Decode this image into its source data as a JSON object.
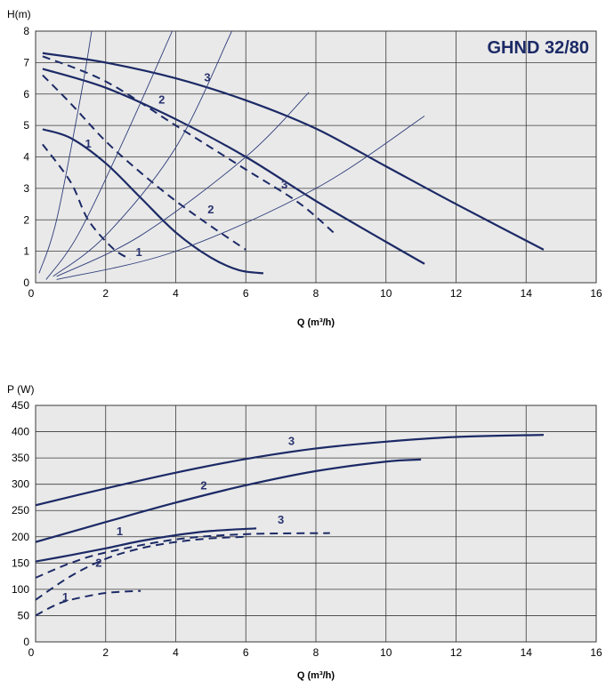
{
  "colors": {
    "plot_bg": "#e9e9e9",
    "grid": "#3a3a3a",
    "curve_thick": "#1c2a66",
    "curve_thin": "#2e3d7a",
    "label": "#2a3470",
    "title": "#1c2a66",
    "axis_text": "#000000"
  },
  "chart_data": [
    {
      "type": "line",
      "title": "GHND 32/80",
      "ylabel": "H(m)",
      "xlabel": "Q (m³/h)",
      "xlim": [
        0,
        16
      ],
      "ylim": [
        0,
        8
      ],
      "xticks": [
        "0",
        "2",
        "4",
        "6",
        "8",
        "10",
        "12",
        "14",
        "16"
      ],
      "yticks": [
        "0",
        "1",
        "2",
        "3",
        "4",
        "5",
        "6",
        "7",
        "8"
      ],
      "grid": true,
      "series": [
        {
          "label": "1",
          "style": "solid",
          "x": [
            0.2,
            1.0,
            2.0,
            3.0,
            4.0,
            5.0,
            5.8,
            6.5
          ],
          "y": [
            4.88,
            4.6,
            3.8,
            2.7,
            1.6,
            0.8,
            0.4,
            0.3
          ]
        },
        {
          "label": "2",
          "style": "solid",
          "x": [
            0.2,
            2.0,
            4.0,
            6.0,
            8.0,
            10.0,
            11.1
          ],
          "y": [
            6.8,
            6.2,
            5.2,
            4.0,
            2.6,
            1.3,
            0.6
          ]
        },
        {
          "label": "3",
          "style": "solid",
          "x": [
            0.2,
            2.0,
            4.0,
            6.0,
            8.0,
            10.0,
            12.0,
            14.5
          ],
          "y": [
            7.3,
            7.0,
            6.5,
            5.8,
            4.9,
            3.7,
            2.5,
            1.05
          ]
        },
        {
          "label": "1",
          "style": "dashed",
          "x": [
            0.2,
            1.0,
            1.5,
            2.2,
            2.7
          ],
          "y": [
            4.4,
            3.2,
            2.0,
            1.1,
            0.75
          ]
        },
        {
          "label": "2",
          "style": "dashed",
          "x": [
            0.2,
            1.0,
            2.0,
            3.0,
            4.0,
            5.0,
            6.0
          ],
          "y": [
            6.6,
            5.7,
            4.5,
            3.5,
            2.6,
            1.8,
            1.05
          ]
        },
        {
          "label": "3",
          "style": "dashed",
          "x": [
            0.2,
            2.0,
            4.0,
            6.0,
            7.5,
            8.5
          ],
          "y": [
            7.2,
            6.4,
            5.0,
            3.6,
            2.55,
            1.6
          ]
        },
        {
          "label": "",
          "style": "system",
          "x": [
            0.1,
            0.6,
            1.3,
            1.6
          ],
          "y": [
            0.3,
            2.0,
            6.0,
            8.0
          ]
        },
        {
          "label": "",
          "style": "system",
          "x": [
            0.3,
            1.2,
            2.5,
            3.9
          ],
          "y": [
            0.1,
            1.5,
            4.5,
            8.0
          ]
        },
        {
          "label": "",
          "style": "system",
          "x": [
            0.5,
            2.0,
            4.0,
            5.6
          ],
          "y": [
            0.2,
            1.5,
            4.3,
            8.0
          ]
        },
        {
          "label": "",
          "style": "system",
          "x": [
            0.6,
            3.0,
            6.0,
            7.8
          ],
          "y": [
            0.2,
            1.5,
            4.0,
            6.05
          ]
        },
        {
          "label": "",
          "style": "system",
          "x": [
            0.6,
            4.0,
            8.0,
            11.1
          ],
          "y": [
            0.1,
            1.0,
            3.0,
            5.3
          ]
        }
      ],
      "curve_labels": [
        {
          "text": "3",
          "x": 4.9,
          "y": 6.4
        },
        {
          "text": "2",
          "x": 3.6,
          "y": 5.7
        },
        {
          "text": "1",
          "x": 1.5,
          "y": 4.3
        },
        {
          "text": "3",
          "x": 7.1,
          "y": 3.0
        },
        {
          "text": "2",
          "x": 5.0,
          "y": 2.2
        },
        {
          "text": "1",
          "x": 2.95,
          "y": 0.85
        }
      ]
    },
    {
      "type": "line",
      "title": "",
      "ylabel": "P (W)",
      "xlabel": "Q (m³/h)",
      "xlim": [
        0,
        16
      ],
      "ylim": [
        0,
        450
      ],
      "xticks": [
        "0",
        "2",
        "4",
        "6",
        "8",
        "10",
        "12",
        "14",
        "16"
      ],
      "yticks": [
        "0",
        "50",
        "100",
        "150",
        "200",
        "250",
        "300",
        "350",
        "400",
        "450"
      ],
      "grid": true,
      "series": [
        {
          "label": "1",
          "style": "solid",
          "x": [
            0,
            1.0,
            2.0,
            3.0,
            4.0,
            5.0,
            6.3
          ],
          "y": [
            153,
            165,
            178,
            192,
            203,
            211,
            216
          ]
        },
        {
          "label": "2",
          "style": "solid",
          "x": [
            0,
            2.0,
            4.0,
            6.0,
            8.0,
            10.0,
            11.0
          ],
          "y": [
            190,
            228,
            265,
            298,
            325,
            343,
            347
          ]
        },
        {
          "label": "3",
          "style": "solid",
          "x": [
            0,
            2.0,
            4.0,
            6.0,
            8.0,
            10.0,
            12.0,
            14.5
          ],
          "y": [
            260,
            292,
            322,
            348,
            368,
            381,
            390,
            394
          ]
        },
        {
          "label": "1",
          "style": "dashed",
          "x": [
            0,
            0.5,
            1.0,
            2.0,
            3.0
          ],
          "y": [
            50,
            68,
            80,
            93,
            97
          ]
        },
        {
          "label": "2",
          "style": "dashed",
          "x": [
            0,
            1.0,
            2.0,
            3.0,
            4.0,
            5.0,
            6.0
          ],
          "y": [
            80,
            125,
            158,
            178,
            190,
            197,
            200
          ]
        },
        {
          "label": "3",
          "style": "dashed",
          "x": [
            0,
            1.0,
            2.0,
            4.0,
            6.0,
            8.4
          ],
          "y": [
            122,
            150,
            170,
            195,
            205,
            207
          ]
        }
      ],
      "curve_labels": [
        {
          "text": "3",
          "x": 7.3,
          "y": 375
        },
        {
          "text": "2",
          "x": 4.8,
          "y": 290
        },
        {
          "text": "1",
          "x": 2.4,
          "y": 203
        },
        {
          "text": "3",
          "x": 7.0,
          "y": 225
        },
        {
          "text": "2",
          "x": 1.8,
          "y": 143
        },
        {
          "text": "1",
          "x": 0.85,
          "y": 78
        }
      ]
    }
  ]
}
